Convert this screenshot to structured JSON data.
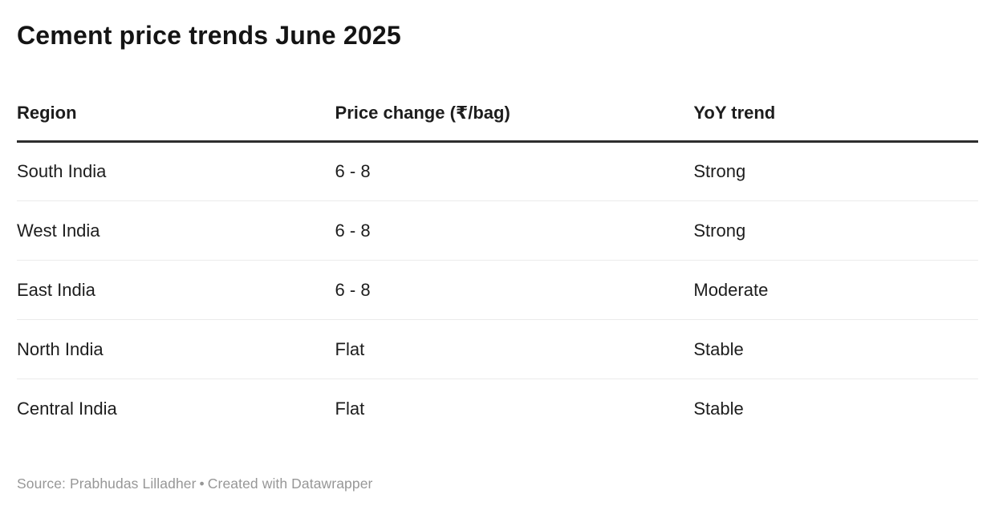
{
  "title": "Cement price trends June 2025",
  "table": {
    "columns": {
      "region": "Region",
      "price_change": "Price change (₹/bag)",
      "yoy_trend": "YoY trend"
    },
    "rows": [
      {
        "region": "South India",
        "price_change": "6 - 8",
        "yoy_trend": "Strong"
      },
      {
        "region": "West India",
        "price_change": "6 - 8",
        "yoy_trend": "Strong"
      },
      {
        "region": "East India",
        "price_change": "6 - 8",
        "yoy_trend": "Moderate"
      },
      {
        "region": "North India",
        "price_change": "Flat",
        "yoy_trend": "Stable"
      },
      {
        "region": "Central India",
        "price_change": "Flat",
        "yoy_trend": "Stable"
      }
    ]
  },
  "footer": {
    "source_text": "Source: Prabhudas Lilladher",
    "separator": "•",
    "attribution_text": "Created with Datawrapper"
  },
  "colors": {
    "title_text": "#141414",
    "body_text": "#1d1d1d",
    "header_rule": "#2e2e2e",
    "row_rule": "#ebebeb",
    "footer_text": "#979797"
  },
  "chart_data": {
    "type": "table",
    "title": "Cement price trends June 2025",
    "columns": [
      "Region",
      "Price change (₹/bag)",
      "YoY trend"
    ],
    "rows": [
      [
        "South India",
        "6 - 8",
        "Strong"
      ],
      [
        "West India",
        "6 - 8",
        "Strong"
      ],
      [
        "East India",
        "6 - 8",
        "Moderate"
      ],
      [
        "North India",
        "Flat",
        "Stable"
      ],
      [
        "Central India",
        "Flat",
        "Stable"
      ]
    ],
    "source": "Source: Prabhudas Lilladher • Created with Datawrapper"
  }
}
